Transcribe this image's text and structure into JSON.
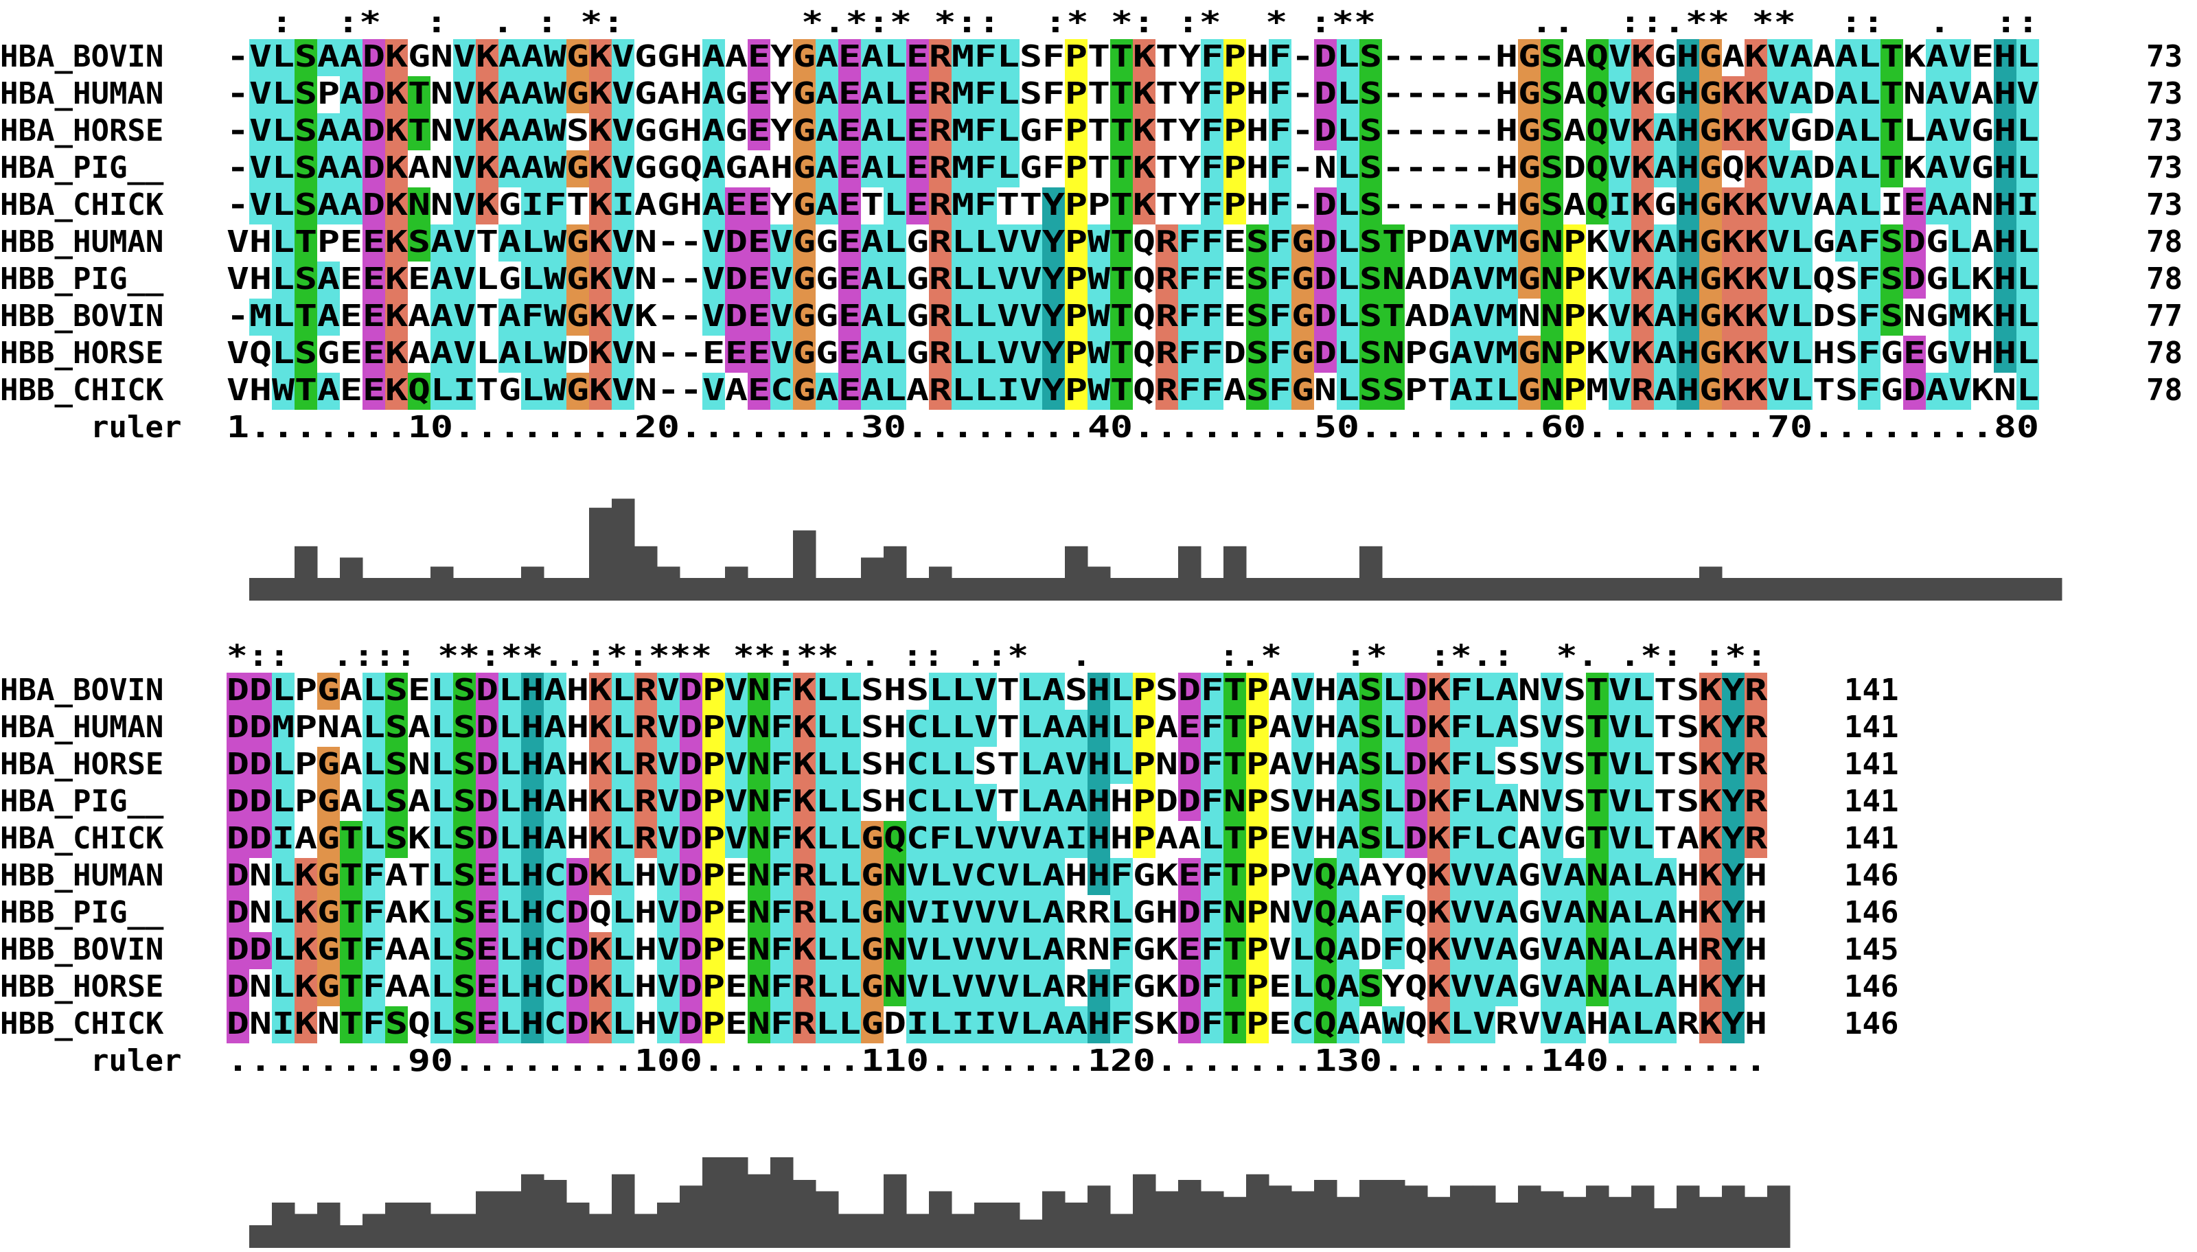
{
  "blocks": [
    {
      "conservation": "  :  :*  :  . : *:        *.*:* *::  :* *: :*  * :**       ..  ::.** **  ::  .  ::",
      "rows": [
        {
          "name": "HBA_BOVIN",
          "seq": "-VLSAADKGNVKAAWGKVGGHAAEYGAEALERMFLSFPTTKTYFPHF-DLS-----HGSAQVKGHGAKVAAALTKAVEHL",
          "num": "73"
        },
        {
          "name": "HBA_HUMAN",
          "seq": "-VLSPADKTNVKAAWGKVGAHAGEYGAEALERMFLSFPTTKTYFPHF-DLS-----HGSAQVKGHGKKVADALTNAVAHV",
          "num": "73"
        },
        {
          "name": "HBA_HORSE",
          "seq": "-VLSAADKTNVKAAWSKVGGHAGEYGAEALERMFLGFPTTKTYFPHF-DLS-----HGSAQVKAHGKKVGDALTLAVGHL",
          "num": "73"
        },
        {
          "name": "HBA_PIG__",
          "seq": "-VLSAADKANVKAAWGKVGGQAGAHGAEALERMFLGFPTTKTYFPHF-NLS-----HGSDQVKAHGQKVADALTKAVGHL",
          "num": "73"
        },
        {
          "name": "HBA_CHICK",
          "seq": "-VLSAADKNNVKGIFTKIAGHAEEYGAETLERMFTTYPPTKTYFPHF-DLS-----HGSAQIKGHGKKVVAALIEAANHI",
          "num": "73"
        },
        {
          "name": "HBB_HUMAN",
          "seq": "VHLTPEEKSAVTALWGKVN--VDEVGGEALGRLLVVYPWTQRFFESFGDLSTPDAVMGNPKVKAHGKKVLGAFSDGLAHL",
          "num": "78"
        },
        {
          "name": "HBB_PIG__",
          "seq": "VHLSAEEKEAVLGLWGKVN--VDEVGGEALGRLLVVYPWTQRFFESFGDLSNADAVMGNPKVKAHGKKVLQSFSDGLKHL",
          "num": "78"
        },
        {
          "name": "HBB_BOVIN",
          "seq": "-MLTAEEKAAVTAFWGKVK--VDEVGGEALGRLLVVYPWTQRFFESFGDLSTADAVMNNPKVKAHGKKVLDSFSNGMKHL",
          "num": "77"
        },
        {
          "name": "HBB_HORSE",
          "seq": "VQLSGEEKAAVLALWDKVN--EEEVGGEALGRLLVVYPWTQRFFDSFGDLSNPGAVMGNPKVKAHGKKVLHSFGEGVHHL",
          "num": "78"
        },
        {
          "name": "HBB_CHICK",
          "seq": "VHWTAEEKQLITGLWGKVN--VAECGAEALARLLIVYPWTQRFFASFGNLSSPTAILGNPMVRAHGKKVLTSFGDAVKNL",
          "num": "78"
        }
      ],
      "ruler_label": "ruler",
      "ruler": "1.......10........20........30........40........50........60........70........80",
      "histogram": [
        0.2,
        0.2,
        0.48,
        0.2,
        0.38,
        0.2,
        0.2,
        0.2,
        0.3,
        0.2,
        0.2,
        0.2,
        0.3,
        0.2,
        0.2,
        0.82,
        0.9,
        0.48,
        0.3,
        0.2,
        0.2,
        0.3,
        0.2,
        0.2,
        0.62,
        0.2,
        0.2,
        0.38,
        0.48,
        0.2,
        0.3,
        0.2,
        0.2,
        0.2,
        0.2,
        0.2,
        0.48,
        0.3,
        0.2,
        0.2,
        0.2,
        0.48,
        0.2,
        0.48,
        0.2,
        0.2,
        0.2,
        0.2,
        0.2,
        0.48,
        0.2,
        0.2,
        0.2,
        0.2,
        0.2,
        0.2,
        0.2,
        0.2,
        0.2,
        0.2,
        0.2,
        0.2,
        0.2,
        0.2,
        0.3,
        0.2,
        0.2,
        0.2,
        0.2,
        0.2,
        0.2,
        0.2,
        0.2,
        0.2,
        0.2,
        0.2,
        0.2,
        0.2,
        0.2,
        0.2
      ]
    },
    {
      "conservation": "*::  .::: **:**..:*:*** **:**.. :: .:*  .      :.*   :*  :*.:  *. .*: :*:",
      "rows": [
        {
          "name": "HBA_BOVIN",
          "seq": "DDLPGALSELSDLHAHKLRVDPVNFKLLSHSLLVTLASHLPSDFTPAVHASLDKFLANVSTVLTSKYR",
          "num": "141"
        },
        {
          "name": "HBA_HUMAN",
          "seq": "DDMPNALSALSDLHAHKLRVDPVNFKLLSHCLLVTLAAHLPAEFTPAVHASLDKFLASVSTVLTSKYR",
          "num": "141"
        },
        {
          "name": "HBA_HORSE",
          "seq": "DDLPGALSNLSDLHAHKLRVDPVNFKLLSHCLLSTLAVHLPNDFTPAVHASLDKFLSSVSTVLTSKYR",
          "num": "141"
        },
        {
          "name": "HBA_PIG__",
          "seq": "DDLPGALSALSDLHAHKLRVDPVNFKLLSHCLLVTLAAHHPDDFNPSVHASLDKFLANVSTVLTSKYR",
          "num": "141"
        },
        {
          "name": "HBA_CHICK",
          "seq": "DDIAGTLSKLSDLHAHKLRVDPVNFKLLGQCFLVVVAIHHPAALTPEVHASLDKFLCAVGTVLTAKYR",
          "num": "141"
        },
        {
          "name": "HBB_HUMAN",
          "seq": "DNLKGTFATLSELHCDKLHVDPENFRLLGNVLVCVLAHHFGKEFTPPVQAAYQKVVAGVANALAHKYH",
          "num": "146"
        },
        {
          "name": "HBB_PIG__",
          "seq": "DNLKGTFAKLSELHCDQLHVDPENFRLLGNVIVVVLARRLGHDFNPNVQAAFQKVVAGVANALAHKYH",
          "num": "146"
        },
        {
          "name": "HBB_BOVIN",
          "seq": "DDLKGTFAALSELHCDKLHVDPENFKLLGNVLVVVLARNFGKEFTPVLQADFQKVVAGVANALAHRYH",
          "num": "145"
        },
        {
          "name": "HBB_HORSE",
          "seq": "DNLKGTFAALSELHCDKLHVDPENFRLLGNVLVVVLARHFGKDFTPELQASYQKVVAGVANALAHKYH",
          "num": "146"
        },
        {
          "name": "HBB_CHICK",
          "seq": "DNIKNTFSQLSELHCDKLHVDPENFRLLGDILIIVLAAHFSKDFTPECQAAWQKLVRVVAHALARKYH",
          "num": "146"
        }
      ],
      "ruler_label": "ruler",
      "ruler": "........90........100.......110.......120.......130.......140.......",
      "histogram": [
        0.2,
        0.4,
        0.3,
        0.4,
        0.2,
        0.3,
        0.4,
        0.4,
        0.3,
        0.3,
        0.5,
        0.5,
        0.65,
        0.6,
        0.4,
        0.3,
        0.65,
        0.3,
        0.4,
        0.55,
        0.8,
        0.8,
        0.65,
        0.8,
        0.6,
        0.5,
        0.3,
        0.3,
        0.65,
        0.3,
        0.5,
        0.3,
        0.4,
        0.4,
        0.25,
        0.5,
        0.4,
        0.55,
        0.3,
        0.65,
        0.5,
        0.6,
        0.5,
        0.45,
        0.65,
        0.55,
        0.5,
        0.6,
        0.45,
        0.6,
        0.6,
        0.55,
        0.45,
        0.55,
        0.55,
        0.4,
        0.55,
        0.5,
        0.45,
        0.55,
        0.45,
        0.55,
        0.35,
        0.55,
        0.45,
        0.55,
        0.45,
        0.55
      ]
    }
  ],
  "colors": {
    "hydrophobic": "#5fe3df",
    "negative": "#c94ec9",
    "positive": "#e07962",
    "polar": "#28c028",
    "glycine": "#e0934a",
    "proline": "#ffff28",
    "aromatic": "#1fa4a4",
    "histogram": "#4a4a4a",
    "text": "#000000"
  }
}
